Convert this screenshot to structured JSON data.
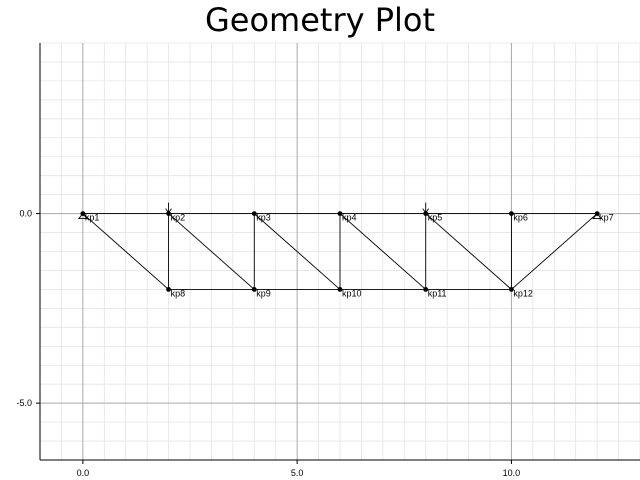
{
  "title": "Geometry Plot",
  "chart_data": {
    "type": "scatter",
    "title": "Geometry Plot",
    "xlabel": "",
    "ylabel": "",
    "xlim": [
      -1.0,
      13.0
    ],
    "ylim": [
      -6.5,
      4.5
    ],
    "grid": true,
    "x_ticks": [
      {
        "value": 0,
        "label": "0.0"
      },
      {
        "value": 5,
        "label": "5.0"
      },
      {
        "value": 10,
        "label": "10.0"
      }
    ],
    "y_ticks": [
      {
        "value": 0,
        "label": "0.0"
      },
      {
        "value": -5,
        "label": "-5.0"
      }
    ],
    "keypoints": [
      {
        "id": "kp1",
        "x": 0,
        "y": 0
      },
      {
        "id": "kp2",
        "x": 2,
        "y": 0
      },
      {
        "id": "kp3",
        "x": 4,
        "y": 0
      },
      {
        "id": "kp4",
        "x": 6,
        "y": 0
      },
      {
        "id": "kp5",
        "x": 8,
        "y": 0
      },
      {
        "id": "kp6",
        "x": 10,
        "y": 0
      },
      {
        "id": "kp7",
        "x": 12,
        "y": 0
      },
      {
        "id": "kp8",
        "x": 2,
        "y": -2
      },
      {
        "id": "kp9",
        "x": 4,
        "y": -2
      },
      {
        "id": "kp10",
        "x": 6,
        "y": -2
      },
      {
        "id": "kp11",
        "x": 8,
        "y": -2
      },
      {
        "id": "kp12",
        "x": 10,
        "y": -2
      }
    ],
    "members": [
      [
        "kp1",
        "kp2"
      ],
      [
        "kp2",
        "kp3"
      ],
      [
        "kp3",
        "kp4"
      ],
      [
        "kp4",
        "kp5"
      ],
      [
        "kp5",
        "kp6"
      ],
      [
        "kp6",
        "kp7"
      ],
      [
        "kp8",
        "kp9"
      ],
      [
        "kp9",
        "kp10"
      ],
      [
        "kp10",
        "kp11"
      ],
      [
        "kp11",
        "kp12"
      ],
      [
        "kp2",
        "kp8"
      ],
      [
        "kp3",
        "kp9"
      ],
      [
        "kp4",
        "kp10"
      ],
      [
        "kp5",
        "kp11"
      ],
      [
        "kp6",
        "kp12"
      ],
      [
        "kp1",
        "kp8"
      ],
      [
        "kp2",
        "kp9"
      ],
      [
        "kp3",
        "kp10"
      ],
      [
        "kp4",
        "kp11"
      ],
      [
        "kp5",
        "kp12"
      ],
      [
        "kp7",
        "kp12"
      ]
    ],
    "supports": [
      {
        "at": "kp1",
        "kind": "pin"
      },
      {
        "at": "kp7",
        "kind": "pin"
      }
    ],
    "loads": [
      {
        "at": "kp2",
        "direction": "down"
      },
      {
        "at": "kp5",
        "direction": "down"
      }
    ]
  }
}
